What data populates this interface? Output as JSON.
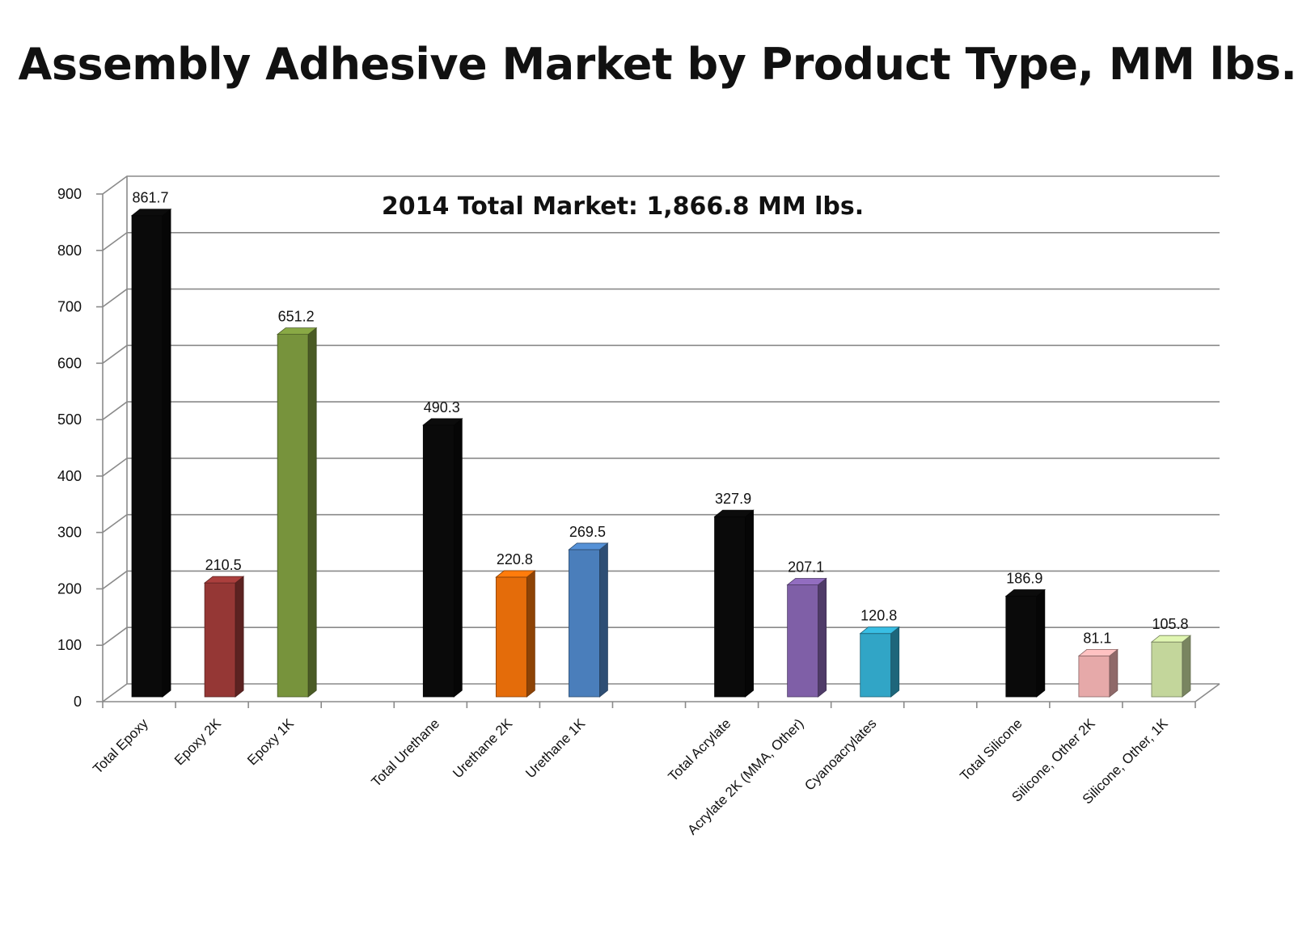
{
  "title": "Assembly Adhesive Market by Product Type, MM lbs.",
  "chart_data": {
    "type": "bar",
    "title": "Assembly Adhesive Market by Product Type, MM lbs.",
    "annotation": "2014 Total Market: 1,866.8 MM lbs.",
    "xlabel": "",
    "ylabel": "",
    "ylim": [
      0,
      900
    ],
    "yticks": [
      "0",
      "100",
      "200",
      "300",
      "400",
      "500",
      "600",
      "700",
      "800",
      "900"
    ],
    "grid": true,
    "legend": "none",
    "style": "3d-columns",
    "categories": [
      "Total Epoxy",
      "Epoxy 2K",
      "Epoxy 1K",
      "",
      "Total Urethane",
      "Urethane 2K",
      "Urethane 1K",
      "",
      "Total Acrylate",
      "Acrylate 2K (MMA, Other)",
      "Cyanoacrylates",
      "",
      "Total Silicone",
      "Silicone, Other 2K",
      "Silicone, Other, 1K"
    ],
    "values": [
      861.7,
      210.5,
      651.2,
      null,
      490.3,
      220.8,
      269.5,
      null,
      327.9,
      207.1,
      120.8,
      null,
      186.9,
      81.1,
      105.8
    ],
    "value_labels": [
      "861.7",
      "210.5",
      "651.2",
      "",
      "490.3",
      "220.8",
      "269.5",
      "",
      "327.9",
      "207.1",
      "120.8",
      "",
      "186.9",
      "81.1",
      "105.8"
    ],
    "colors": [
      "#0a0a0a",
      "#953735",
      "#77933c",
      "",
      "#0a0a0a",
      "#e46c0a",
      "#4a7ebb",
      "",
      "#0a0a0a",
      "#7f5fa7",
      "#31a5c6",
      "",
      "#0a0a0a",
      "#e6a9a9",
      "#c3d69b"
    ]
  }
}
